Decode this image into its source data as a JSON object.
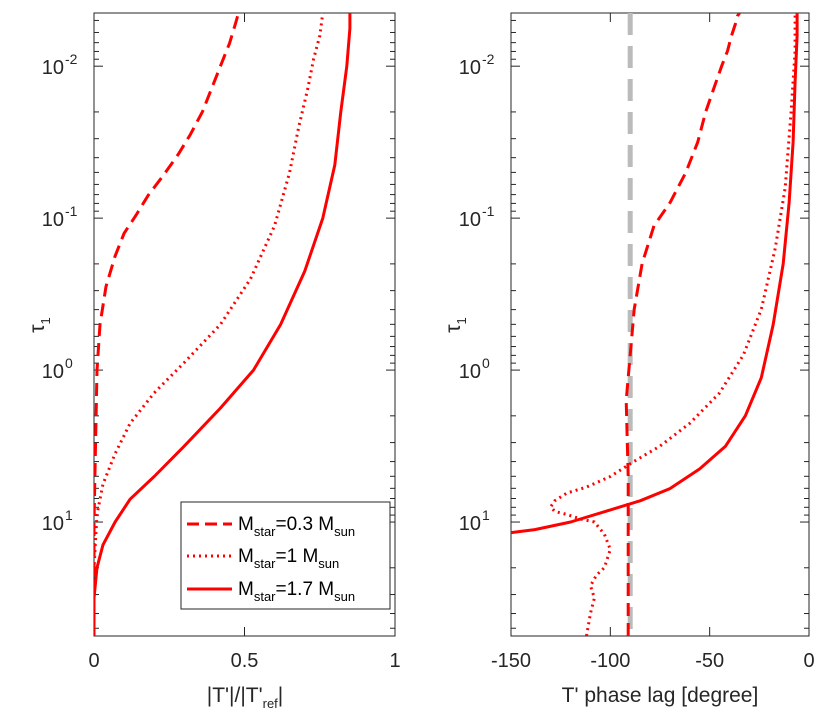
{
  "chart_data": [
    {
      "type": "line",
      "name": "amplitude",
      "xlabel": {
        "main": "|T'|/|T'",
        "sub": "ref",
        "tail": "|"
      },
      "ylabel": {
        "main": "τ",
        "sub": "1"
      },
      "xlim": [
        0,
        1
      ],
      "ylim_log10": [
        -2.35,
        1.75
      ],
      "y_reversed": true,
      "x_ticks": [
        0,
        0.5,
        1
      ],
      "x_tick_labels": [
        "0",
        "0.5",
        "1"
      ],
      "y_ticks_log10": [
        -2,
        -1,
        0,
        1
      ],
      "y_tick_labels": [
        "10",
        "10",
        "10",
        "10"
      ],
      "y_tick_exponents": [
        "-2",
        "-1",
        "0",
        "1"
      ],
      "color": "#ff0000",
      "legend": [
        {
          "main": "M",
          "sub": "star",
          "mid": "=0.3 M",
          "sub2": "sun",
          "style": "dashed"
        },
        {
          "main": "M",
          "sub": "star",
          "mid": "=1 M",
          "sub2": "sun",
          "style": "dotted"
        },
        {
          "main": "M",
          "sub": "star",
          "mid": "=1.7 M",
          "sub2": "sun",
          "style": "solid"
        }
      ],
      "legend_location": "bottom-right",
      "series": [
        {
          "name": "Mstar=0.3 Msun",
          "style": "dashed",
          "x": [
            0.0,
            0.0,
            0.005,
            0.01,
            0.02,
            0.04,
            0.07,
            0.1,
            0.14,
            0.18,
            0.23,
            0.28,
            0.32,
            0.36,
            0.39,
            0.42,
            0.45,
            0.47,
            0.48,
            0.48
          ],
          "log_tau": [
            1.75,
            1.0,
            0.5,
            0.0,
            -0.3,
            -0.55,
            -0.75,
            -0.9,
            -1.02,
            -1.15,
            -1.28,
            -1.42,
            -1.55,
            -1.7,
            -1.85,
            -2.0,
            -2.15,
            -2.28,
            -2.35,
            -2.35
          ]
        },
        {
          "name": "Mstar=1 Msun",
          "style": "dotted",
          "x": [
            0.0,
            0.0,
            0.01,
            0.03,
            0.07,
            0.12,
            0.2,
            0.3,
            0.42,
            0.52,
            0.6,
            0.65,
            0.68,
            0.71,
            0.73,
            0.75,
            0.76,
            0.76
          ],
          "log_tau": [
            1.75,
            1.3,
            0.95,
            0.75,
            0.55,
            0.35,
            0.15,
            -0.05,
            -0.3,
            -0.6,
            -0.95,
            -1.3,
            -1.6,
            -1.85,
            -2.05,
            -2.2,
            -2.35,
            -2.35
          ]
        },
        {
          "name": "Mstar=1.7 Msun",
          "style": "solid",
          "x": [
            0.0,
            0.0,
            0.01,
            0.03,
            0.07,
            0.12,
            0.2,
            0.3,
            0.42,
            0.53,
            0.62,
            0.7,
            0.76,
            0.8,
            0.82,
            0.84,
            0.85,
            0.85
          ],
          "log_tau": [
            1.75,
            1.5,
            1.3,
            1.15,
            1.0,
            0.85,
            0.7,
            0.5,
            0.25,
            0.0,
            -0.3,
            -0.65,
            -1.0,
            -1.35,
            -1.7,
            -2.0,
            -2.25,
            -2.35
          ]
        }
      ]
    },
    {
      "type": "line",
      "name": "phase",
      "xlabel": {
        "main": "T' phase lag [degree]"
      },
      "ylabel": {
        "main": "τ",
        "sub": "1"
      },
      "xlim": [
        -150,
        0
      ],
      "ylim_log10": [
        -2.35,
        1.75
      ],
      "y_reversed": true,
      "x_ticks": [
        -150,
        -100,
        -50,
        0
      ],
      "x_tick_labels": [
        "-150",
        "-100",
        "-50",
        "0"
      ],
      "y_ticks_log10": [
        -2,
        -1,
        0,
        1
      ],
      "y_tick_labels": [
        "10",
        "10",
        "10",
        "10"
      ],
      "y_tick_exponents": [
        "-2",
        "-1",
        "0",
        "1"
      ],
      "color": "#ff0000",
      "reference_line": {
        "x": -90,
        "color": "#bbbbbb",
        "style": "dashed"
      },
      "series": [
        {
          "name": "Mstar=0.3 Msun",
          "style": "dashed",
          "x": [
            -91,
            -91,
            -91,
            -92,
            -90,
            -88,
            -84,
            -78,
            -70,
            -62,
            -56,
            -52,
            -48,
            -44,
            -41,
            -39,
            -37,
            -36,
            -35,
            -35
          ],
          "log_tau": [
            1.75,
            1.2,
            0.7,
            0.2,
            -0.1,
            -0.4,
            -0.7,
            -0.95,
            -1.1,
            -1.3,
            -1.5,
            -1.7,
            -1.85,
            -2.0,
            -2.1,
            -2.2,
            -2.28,
            -2.33,
            -2.35,
            -2.35
          ]
        },
        {
          "name": "Mstar=1 Msun",
          "style": "dotted",
          "x": [
            -112,
            -110,
            -108,
            -110,
            -107,
            -103,
            -100,
            -103,
            -108,
            -115,
            -122,
            -128,
            -130,
            -128,
            -122,
            -112,
            -100,
            -88,
            -75,
            -60,
            -45,
            -33,
            -24,
            -17,
            -12,
            -9,
            -7,
            -7
          ],
          "log_tau": [
            1.75,
            1.6,
            1.5,
            1.42,
            1.35,
            1.3,
            1.18,
            1.08,
            1.0,
            0.98,
            0.95,
            0.93,
            0.9,
            0.86,
            0.81,
            0.77,
            0.7,
            0.6,
            0.5,
            0.35,
            0.15,
            -0.1,
            -0.4,
            -0.8,
            -1.2,
            -1.7,
            -2.1,
            -2.35
          ]
        },
        {
          "name": "Mstar=1.7 Msun",
          "style": "solid",
          "x": [
            -150,
            -138,
            -120,
            -100,
            -85,
            -70,
            -55,
            -42,
            -32,
            -24,
            -18,
            -13,
            -10,
            -8,
            -7,
            -6,
            -6
          ],
          "log_tau": [
            1.07,
            1.05,
            1.0,
            0.92,
            0.86,
            0.78,
            0.65,
            0.5,
            0.3,
            0.05,
            -0.3,
            -0.7,
            -1.1,
            -1.5,
            -1.9,
            -2.2,
            -2.35
          ]
        }
      ]
    }
  ]
}
